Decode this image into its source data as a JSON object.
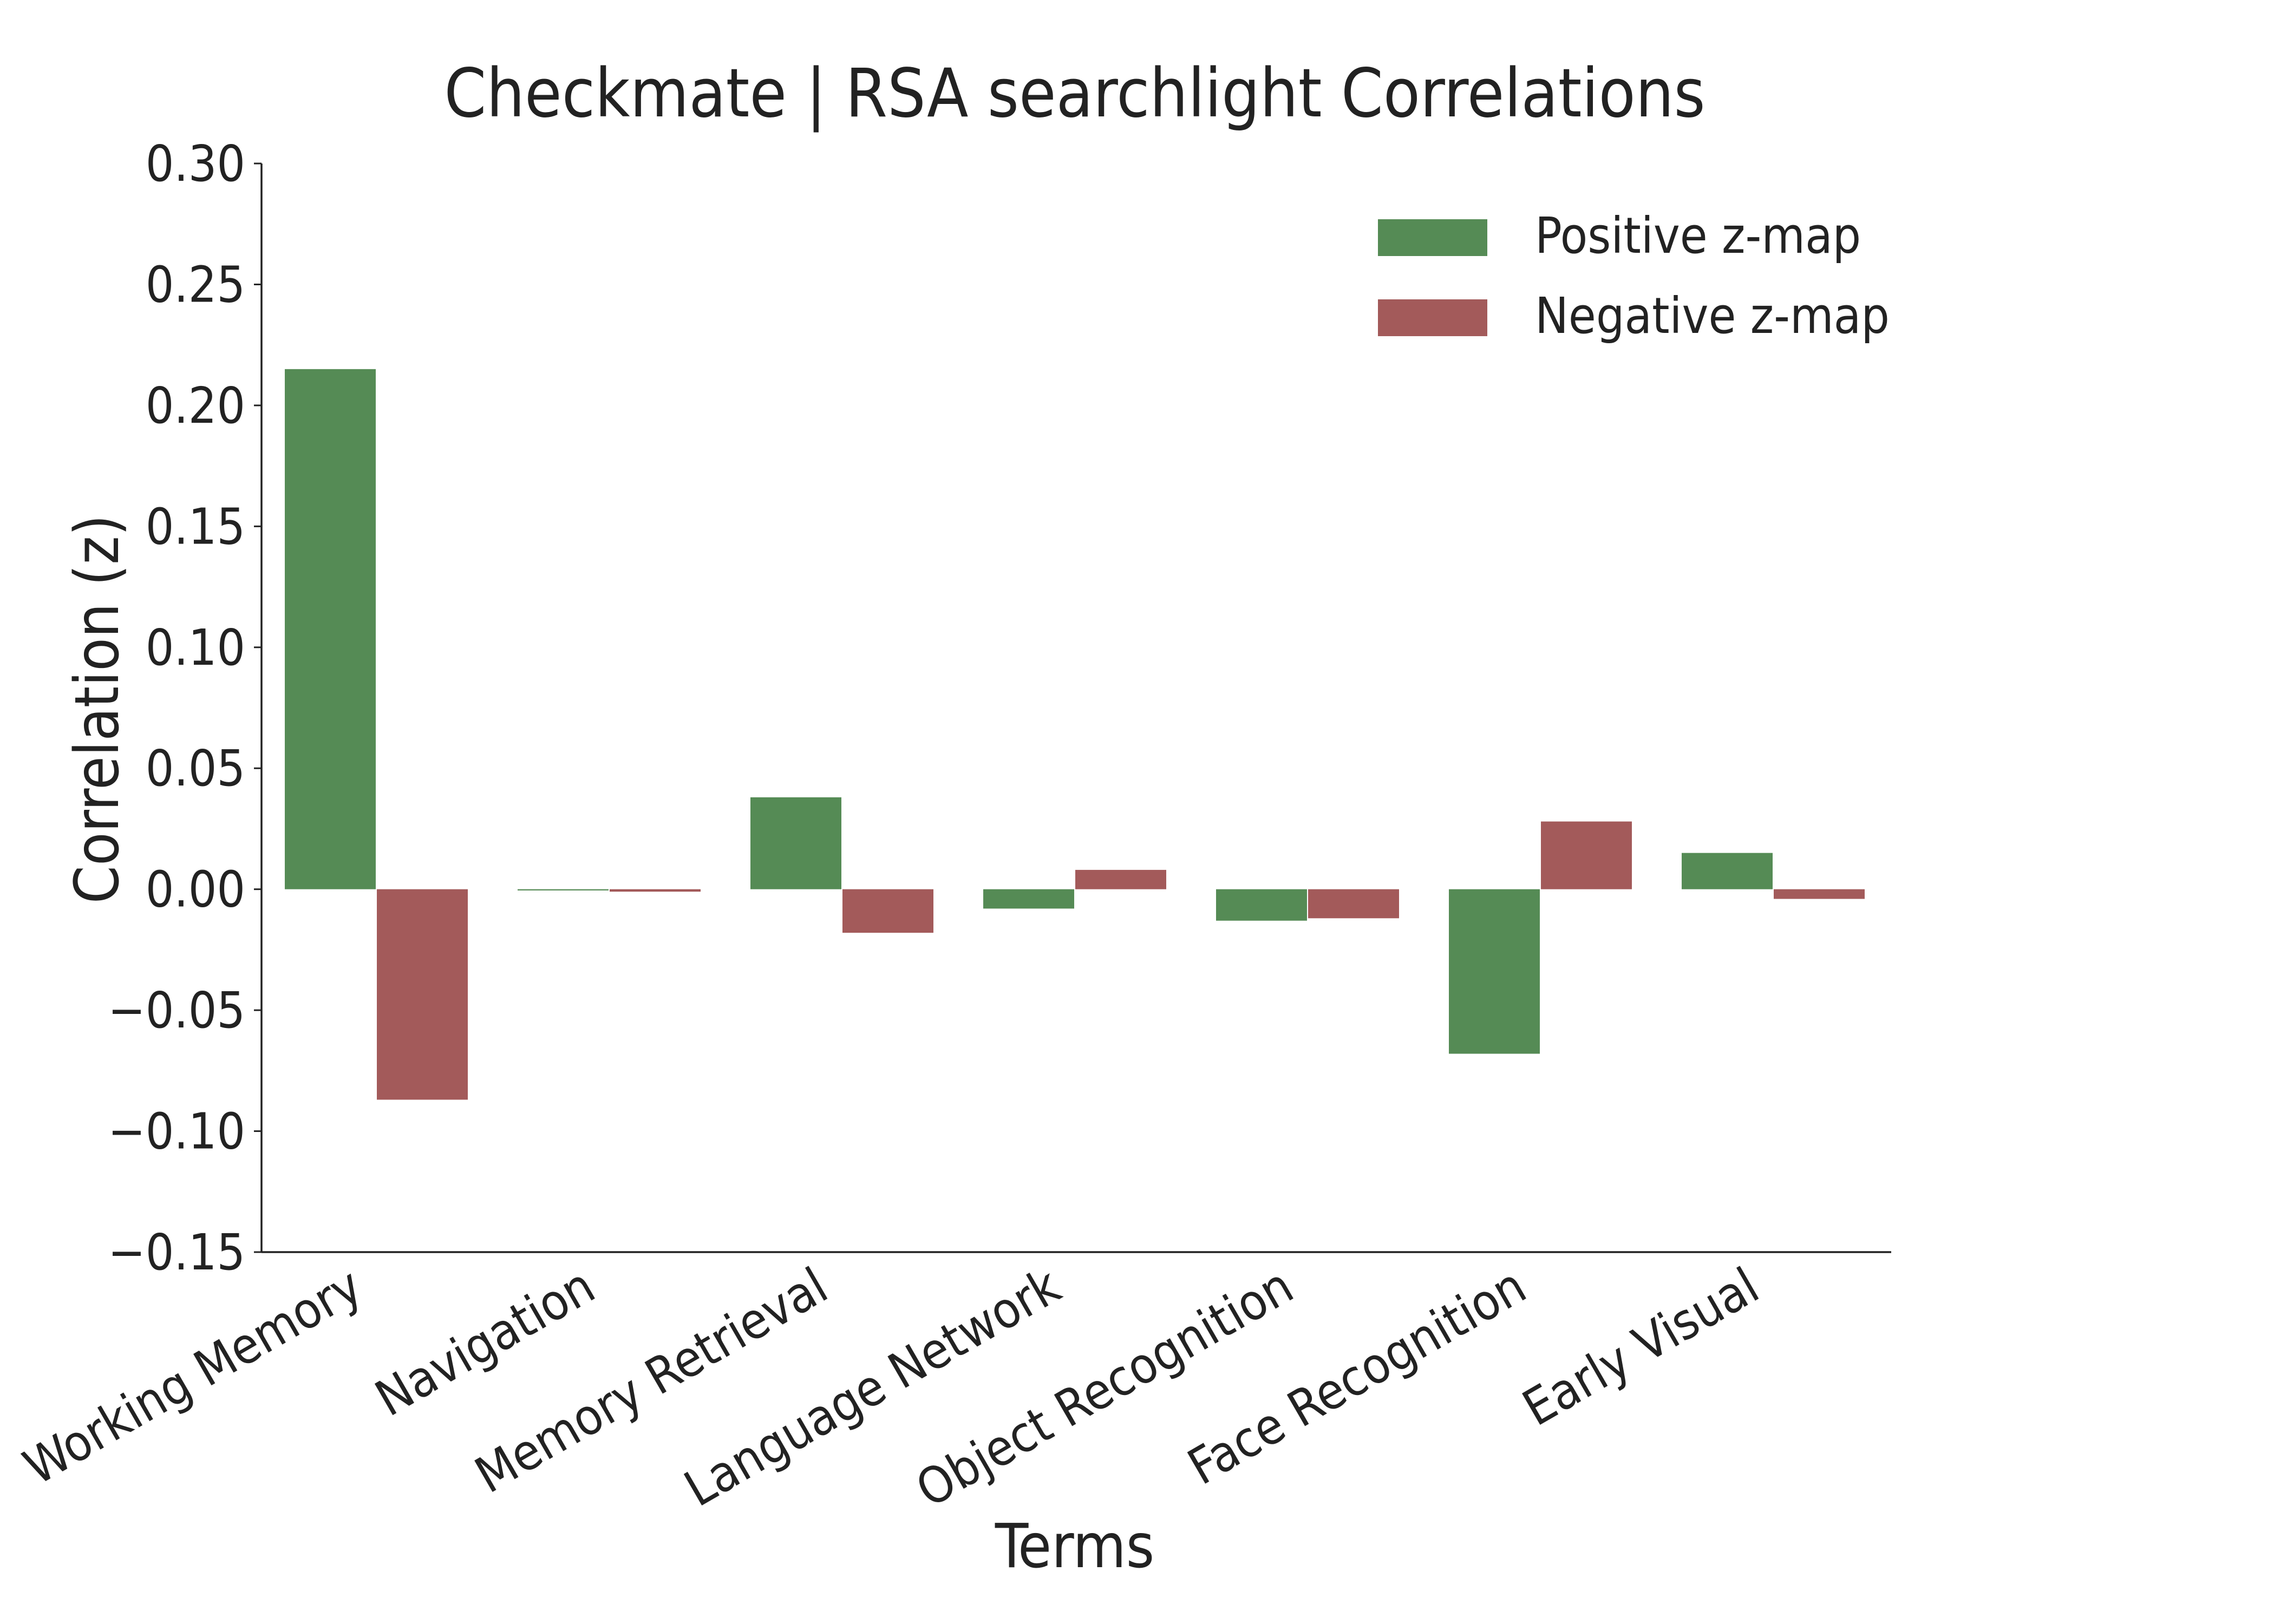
{
  "chart_data": {
    "type": "bar",
    "title": "Checkmate | RSA searchlight Correlations",
    "xlabel": "Terms",
    "ylabel": "Correlation (z)",
    "ylim": [
      -0.15,
      0.3
    ],
    "yticks": [
      0.3,
      0.25,
      0.2,
      0.15,
      0.1,
      0.05,
      0.0,
      -0.05,
      -0.1,
      -0.15
    ],
    "ytick_labels": [
      "0.30",
      "0.25",
      "0.20",
      "0.15",
      "0.10",
      "0.05",
      "0.00",
      "−0.05",
      "−0.10",
      "−0.15"
    ],
    "categories": [
      "Working Memory",
      "Navigation",
      "Memory Retrieval",
      "Language Network",
      "Object Recognition",
      "Face Recognition",
      "Early Visual"
    ],
    "series": [
      {
        "name": "Positive z-map",
        "color": "#558b55",
        "values": [
          0.215,
          -0.0005,
          0.038,
          -0.008,
          -0.013,
          -0.068,
          0.015
        ]
      },
      {
        "name": "Negative z-map",
        "color": "#a35a5a",
        "values": [
          -0.087,
          -0.001,
          -0.018,
          0.008,
          -0.012,
          0.028,
          -0.004
        ]
      }
    ],
    "legend_position": "top-right",
    "grid": false
  }
}
